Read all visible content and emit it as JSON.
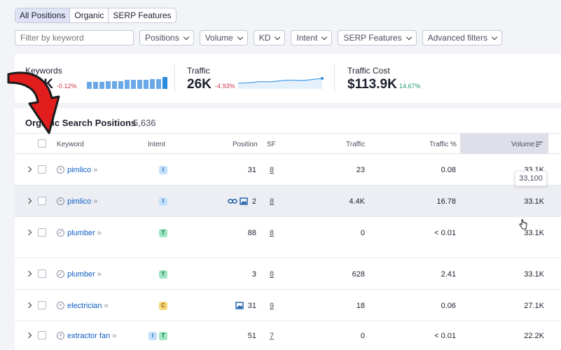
{
  "tabs": [
    {
      "label": "All Positions",
      "active": true
    },
    {
      "label": "Organic",
      "active": false
    },
    {
      "label": "SERP Features",
      "active": false
    }
  ],
  "filters": {
    "search_placeholder": "Filter by keyword",
    "dropdowns": [
      "Positions",
      "Volume",
      "KD",
      "Intent",
      "SERP Features",
      "Advanced filters"
    ]
  },
  "summary": {
    "keywords": {
      "label": "Keywords",
      "value": "5.6K",
      "change": "-0.12%"
    },
    "traffic": {
      "label": "Traffic",
      "value": "26K",
      "change": "-4.93%"
    },
    "traffic_cost": {
      "label": "Traffic Cost",
      "value": "$113.9K",
      "change": "14.67%"
    },
    "colors": {
      "negative": "#d1344b",
      "positive": "#1f9c6b",
      "spark": "#2a8bdf"
    }
  },
  "table": {
    "title": "Organic Search Positions",
    "count": "5,636",
    "headers": {
      "keyword": "Keyword",
      "intent": "Intent",
      "position": "Position",
      "sf": "SF",
      "traffic": "Traffic",
      "traffic_pct": "Traffic %",
      "volume": "Volume"
    },
    "rows": [
      {
        "keyword": "pimlico",
        "intent": [
          "I"
        ],
        "serp_icons": [],
        "position": "31",
        "sf": "8",
        "traffic": "23",
        "traffic_pct": "0.08",
        "volume": "33.1K",
        "icon": "plus"
      },
      {
        "keyword": "pimlico",
        "intent": [
          "I"
        ],
        "serp_icons": [
          "link-icon",
          "image-icon"
        ],
        "position": "2",
        "sf": "8",
        "traffic": "4.4K",
        "traffic_pct": "16.78",
        "volume": "33.1K",
        "icon": "plus"
      },
      {
        "keyword": "plumber",
        "intent": [
          "T"
        ],
        "serp_icons": [],
        "position": "88",
        "sf": "8",
        "traffic": "0",
        "traffic_pct": "< 0.01",
        "volume": "33.1K",
        "icon": "check"
      },
      {
        "keyword": "plumber",
        "intent": [
          "T"
        ],
        "serp_icons": [],
        "position": "3",
        "sf": "8",
        "traffic": "628",
        "traffic_pct": "2.41",
        "volume": "33.1K",
        "icon": "check"
      },
      {
        "keyword": "electrician",
        "intent": [
          "C"
        ],
        "serp_icons": [
          "image-icon"
        ],
        "position": "31",
        "sf": "9",
        "traffic": "18",
        "traffic_pct": "0.06",
        "volume": "27.1K",
        "icon": "plus"
      },
      {
        "keyword": "extractor fan",
        "intent": [
          "I",
          "T"
        ],
        "serp_icons": [],
        "position": "51",
        "sf": "7",
        "traffic": "0",
        "traffic_pct": "< 0.01",
        "volume": "22.2K",
        "icon": "plus"
      }
    ]
  },
  "tooltip": "33,100"
}
